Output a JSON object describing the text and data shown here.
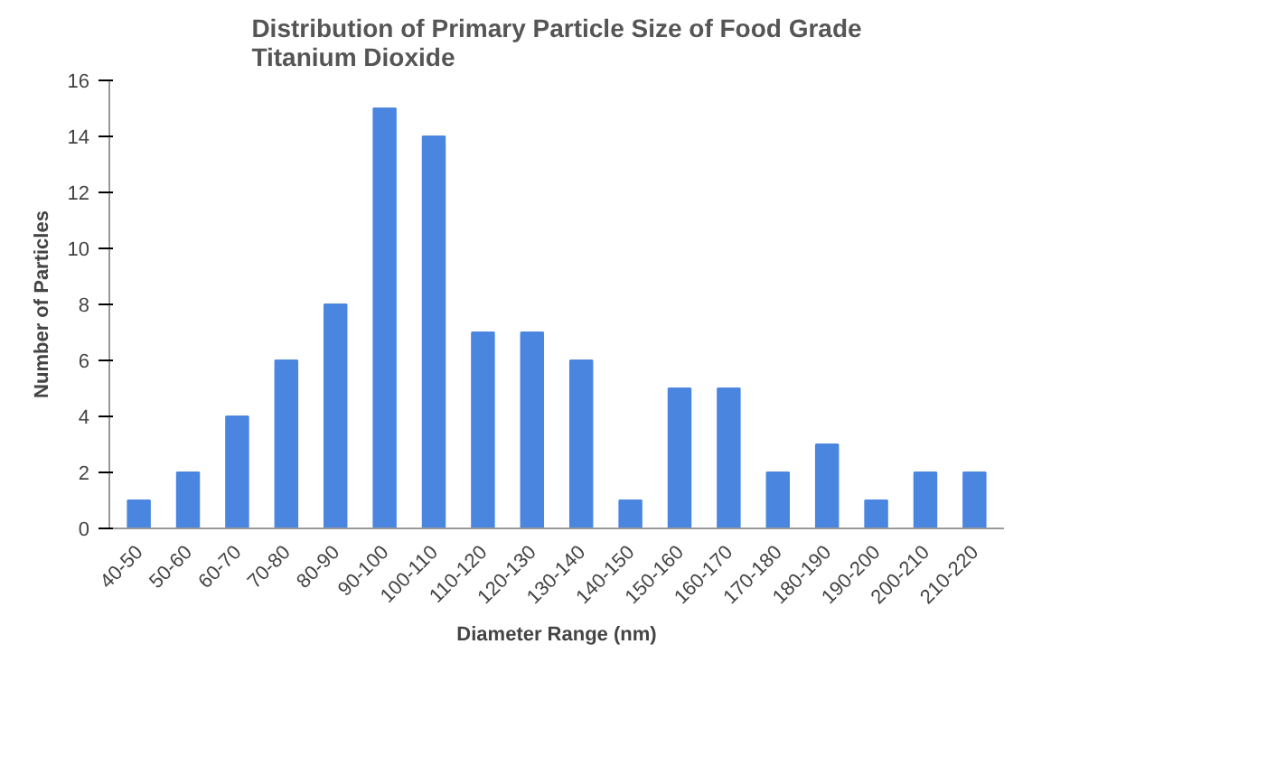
{
  "chart_data": {
    "type": "bar",
    "title": "Distribution of Primary Particle Size of Food Grade\nTitanium Dioxide",
    "xlabel": "Diameter Range (nm)",
    "ylabel": "Number of Particles",
    "categories": [
      "40-50",
      "50-60",
      "60-70",
      "70-80",
      "80-90",
      "90-100",
      "100-110",
      "110-120",
      "120-130",
      "130-140",
      "140-150",
      "150-160",
      "160-170",
      "170-180",
      "180-190",
      "190-200",
      "200-210",
      "210-220"
    ],
    "values": [
      1,
      2,
      4,
      6,
      8,
      15,
      14,
      7,
      7,
      6,
      1,
      5,
      5,
      2,
      3,
      1,
      2,
      2
    ],
    "color": "#4a86e0",
    "ylim": [
      0,
      16
    ],
    "yticks": [
      0,
      2,
      4,
      6,
      8,
      10,
      12,
      14,
      16
    ],
    "grid": false
  }
}
